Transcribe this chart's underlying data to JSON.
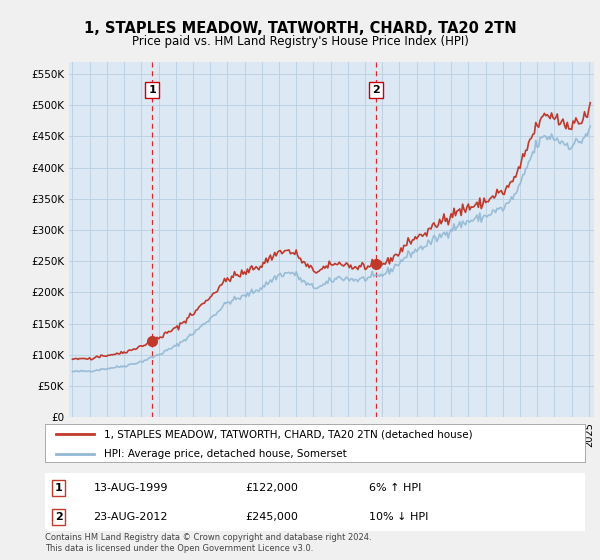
{
  "title": "1, STAPLES MEADOW, TATWORTH, CHARD, TA20 2TN",
  "subtitle": "Price paid vs. HM Land Registry's House Price Index (HPI)",
  "legend_line1": "1, STAPLES MEADOW, TATWORTH, CHARD, TA20 2TN (detached house)",
  "legend_line2": "HPI: Average price, detached house, Somerset",
  "footnote": "Contains HM Land Registry data © Crown copyright and database right 2024.\nThis data is licensed under the Open Government Licence v3.0.",
  "transaction1_date": "13-AUG-1999",
  "transaction1_price": "£122,000",
  "transaction1_hpi": "6% ↑ HPI",
  "transaction2_date": "23-AUG-2012",
  "transaction2_price": "£245,000",
  "transaction2_hpi": "10% ↓ HPI",
  "hpi_color": "#92b8d4",
  "price_color": "#c0392b",
  "marker_color": "#c0392b",
  "dashed_color": "#cc0000",
  "background_color": "#dce9f5",
  "grid_color": "#b8cfe0",
  "outer_bg": "#f0f0f0",
  "transaction1_x": 1999.63,
  "transaction1_y": 122000,
  "transaction2_x": 2012.63,
  "transaction2_y": 245000,
  "ylim": [
    0,
    570000
  ],
  "xlim_left": 1994.8,
  "xlim_right": 2025.3
}
